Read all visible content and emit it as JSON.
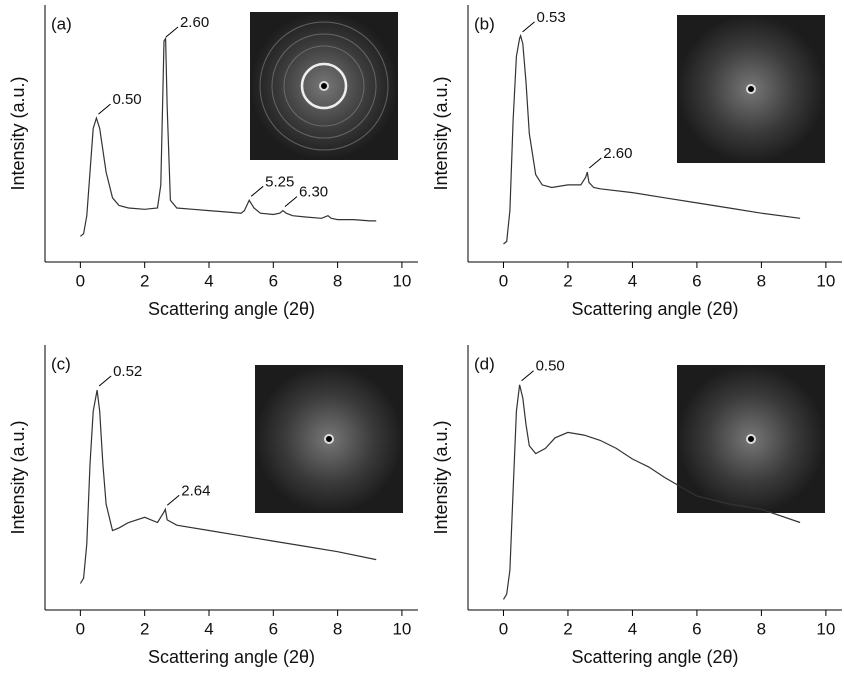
{
  "chart_data": [
    {
      "type": "line",
      "panel_label": "(a)",
      "xlabel": "Scattering angle (2θ)",
      "ylabel": "Intensity (a.u.)",
      "xlim": [
        -1.1,
        10.5
      ],
      "xticks": [
        0,
        2,
        4,
        6,
        8,
        10
      ],
      "ylim": [
        0,
        100
      ],
      "color": "#333333",
      "x": [
        0,
        0.1,
        0.2,
        0.3,
        0.4,
        0.5,
        0.6,
        0.8,
        1.0,
        1.2,
        1.5,
        2.0,
        2.4,
        2.5,
        2.6,
        2.65,
        2.7,
        2.8,
        3.0,
        3.5,
        4.0,
        4.5,
        5.0,
        5.1,
        5.25,
        5.4,
        5.6,
        6.0,
        6.2,
        6.3,
        6.4,
        6.6,
        7.0,
        7.5,
        7.7,
        7.8,
        8.0,
        8.5,
        9.0,
        9.2
      ],
      "values": [
        10,
        11,
        18,
        35,
        52,
        56,
        52,
        35,
        25,
        22,
        21,
        20.5,
        21,
        30,
        86,
        87,
        60,
        24,
        21,
        20.5,
        20,
        19.5,
        19,
        20,
        24,
        21,
        19,
        18.5,
        19,
        20,
        19,
        18,
        17.5,
        17,
        18,
        17,
        16.5,
        16.5,
        16,
        16
      ],
      "annotations": [
        {
          "value": 0.5,
          "label": "0.50"
        },
        {
          "value": 2.6,
          "label": "2.60"
        },
        {
          "value": 5.25,
          "label": "5.25"
        },
        {
          "value": 6.3,
          "label": "6.30"
        }
      ]
    },
    {
      "type": "line",
      "panel_label": "(b)",
      "xlabel": "Scattering angle (2θ)",
      "ylabel": "Intensity (a.u.)",
      "xlim": [
        -1.1,
        10.5
      ],
      "xticks": [
        0,
        2,
        4,
        6,
        8,
        10
      ],
      "ylim": [
        0,
        100
      ],
      "color": "#333333",
      "x": [
        0,
        0.1,
        0.2,
        0.3,
        0.4,
        0.5,
        0.53,
        0.6,
        0.7,
        0.8,
        1.0,
        1.2,
        1.5,
        2.0,
        2.4,
        2.55,
        2.6,
        2.65,
        2.8,
        3.0,
        4.0,
        5.0,
        6.0,
        7.0,
        8.0,
        9.2
      ],
      "values": [
        7,
        8,
        20,
        55,
        80,
        87,
        88,
        85,
        70,
        50,
        34,
        30,
        29,
        30,
        30,
        33,
        35,
        31,
        29,
        28.5,
        27,
        25,
        23,
        21,
        19,
        17
      ],
      "annotations": [
        {
          "value": 0.53,
          "label": "0.53"
        },
        {
          "value": 2.6,
          "label": "2.60"
        }
      ]
    },
    {
      "type": "line",
      "panel_label": "(c)",
      "xlabel": "Scattering angle (2θ)",
      "ylabel": "Intensity (a.u.)",
      "xlim": [
        -1.1,
        10.5
      ],
      "xticks": [
        0,
        2,
        4,
        6,
        8,
        10
      ],
      "ylim": [
        0,
        100
      ],
      "color": "#333333",
      "x": [
        0,
        0.1,
        0.2,
        0.3,
        0.4,
        0.52,
        0.6,
        0.7,
        0.8,
        1.0,
        1.2,
        1.5,
        2.0,
        2.4,
        2.6,
        2.64,
        2.7,
        3.0,
        4.0,
        5.0,
        6.0,
        7.0,
        8.0,
        9.2
      ],
      "values": [
        10,
        12,
        25,
        55,
        75,
        83,
        75,
        55,
        40,
        30,
        31,
        33,
        35,
        33,
        37,
        38,
        34,
        32,
        30,
        28,
        26,
        24,
        22,
        19
      ],
      "annotations": [
        {
          "value": 0.52,
          "label": "0.52"
        },
        {
          "value": 2.64,
          "label": "2.64"
        }
      ]
    },
    {
      "type": "line",
      "panel_label": "(d)",
      "xlabel": "Scattering angle (2θ)",
      "ylabel": "Intensity (a.u.)",
      "xlim": [
        -1.1,
        10.5
      ],
      "xticks": [
        0,
        2,
        4,
        6,
        8,
        10
      ],
      "ylim": [
        0,
        100
      ],
      "color": "#333333",
      "x": [
        0,
        0.1,
        0.2,
        0.3,
        0.4,
        0.5,
        0.6,
        0.7,
        0.8,
        1.0,
        1.3,
        1.6,
        2.0,
        2.5,
        3.0,
        3.5,
        4.0,
        4.5,
        5.0,
        6.0,
        7.0,
        8.0,
        9.2
      ],
      "values": [
        4,
        6,
        15,
        45,
        75,
        85,
        80,
        70,
        62,
        59,
        61,
        65,
        67,
        66,
        64,
        61,
        57,
        54,
        50,
        43,
        40,
        38,
        33
      ],
      "annotations": [
        {
          "value": 0.5,
          "label": "0.50"
        }
      ]
    }
  ]
}
